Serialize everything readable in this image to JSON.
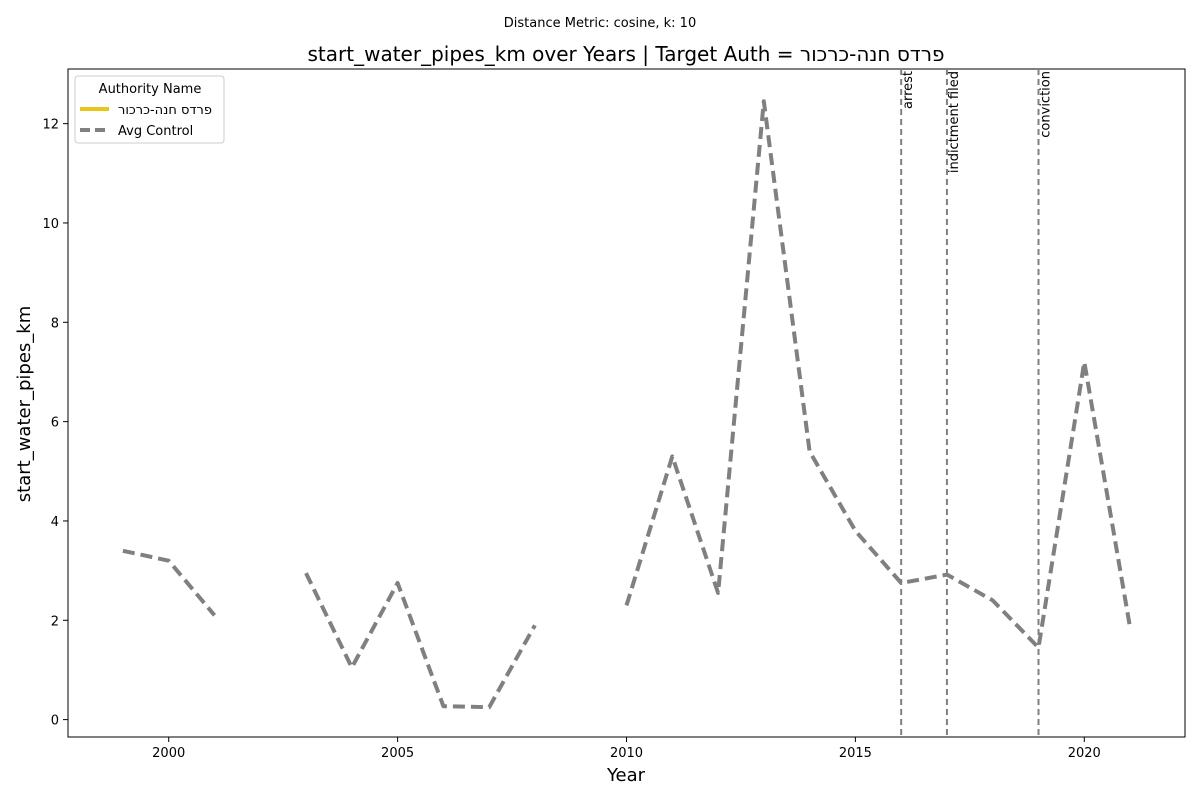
{
  "chart_data": {
    "type": "line",
    "suptitle": "Distance Metric: cosine, k: 10",
    "title": "start_water_pipes_km over Years | Target Auth = פרדס חנה-כרכור",
    "xlabel": "Year",
    "ylabel": "start_water_pipes_km",
    "xlim": [
      1997.8,
      2022.2
    ],
    "ylim": [
      -0.35,
      13.1
    ],
    "x_ticks": [
      2000,
      2005,
      2010,
      2015,
      2020
    ],
    "y_ticks": [
      0,
      2,
      4,
      6,
      8,
      10,
      12
    ],
    "grid": false,
    "legend": {
      "title": "Authority Name",
      "placement": "top-left",
      "entries": [
        {
          "label": "פרדס חנה-כרכור",
          "color": "#e8c61a",
          "style": "solid"
        },
        {
          "label": "Avg Control",
          "color": "#808080",
          "style": "dashed"
        }
      ]
    },
    "series": [
      {
        "name": "פרדס חנה-כרכור",
        "color": "#e8c61a",
        "style": "solid",
        "x": [],
        "y": []
      },
      {
        "name": "Avg Control",
        "color": "#808080",
        "style": "dashed",
        "x": [
          1999,
          2000,
          2001,
          2002,
          2003,
          2004,
          2005,
          2006,
          2007,
          2008,
          2009,
          2010,
          2011,
          2012,
          2013,
          2014,
          2015,
          2016,
          2017,
          2018,
          2019,
          2020,
          2021
        ],
        "y": [
          3.4,
          3.2,
          2.1,
          null,
          2.95,
          1.05,
          2.75,
          0.27,
          0.25,
          1.9,
          null,
          2.3,
          5.3,
          2.55,
          12.45,
          5.4,
          3.8,
          2.75,
          2.92,
          2.4,
          1.45,
          7.2,
          1.85
        ]
      }
    ],
    "events": [
      {
        "x": 2016,
        "label": "arrest"
      },
      {
        "x": 2017,
        "label": "indictment filed"
      },
      {
        "x": 2019,
        "label": "conviction"
      }
    ]
  }
}
